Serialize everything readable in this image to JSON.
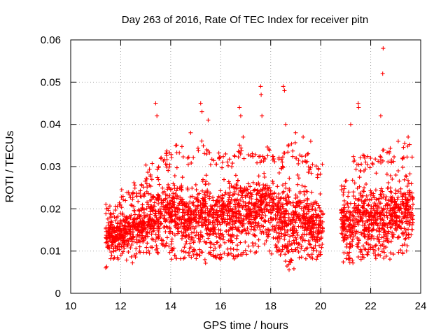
{
  "chart_data": {
    "type": "scatter",
    "title": "Day 263 of 2016, Rate Of TEC Index for receiver pitn",
    "xlabel": "GPS time / hours",
    "ylabel": "ROTI / TECUs",
    "xlim": [
      10,
      24
    ],
    "ylim": [
      0,
      0.06
    ],
    "xticks": [
      "10",
      "12",
      "14",
      "16",
      "18",
      "20",
      "22",
      "24"
    ],
    "yticks": [
      "0",
      "0.01",
      "0.02",
      "0.03",
      "0.04",
      "0.05",
      "0.06"
    ],
    "grid": true,
    "marker": "+",
    "marker_color": "#ff0000",
    "series": [
      {
        "name": "ROTI",
        "description": "dense ROTI samples approximated as 30-minute segments (hours, lower / central / upper ROTI) plus notable outliers",
        "segments": [
          {
            "x": [
              11.4,
              12.0
            ],
            "low": 0.006,
            "mid": 0.014,
            "high": 0.019
          },
          {
            "x": [
              12.0,
              12.5
            ],
            "low": 0.007,
            "mid": 0.015,
            "high": 0.022
          },
          {
            "x": [
              12.5,
              13.0
            ],
            "low": 0.008,
            "mid": 0.016,
            "high": 0.024
          },
          {
            "x": [
              13.0,
              13.5
            ],
            "low": 0.008,
            "mid": 0.018,
            "high": 0.028
          },
          {
            "x": [
              13.5,
              14.0
            ],
            "low": 0.009,
            "mid": 0.019,
            "high": 0.031
          },
          {
            "x": [
              14.0,
              14.5
            ],
            "low": 0.008,
            "mid": 0.019,
            "high": 0.033
          },
          {
            "x": [
              14.5,
              15.0
            ],
            "low": 0.008,
            "mid": 0.018,
            "high": 0.03
          },
          {
            "x": [
              15.0,
              15.5
            ],
            "low": 0.007,
            "mid": 0.019,
            "high": 0.034
          },
          {
            "x": [
              15.5,
              16.0
            ],
            "low": 0.008,
            "mid": 0.018,
            "high": 0.031
          },
          {
            "x": [
              16.0,
              16.5
            ],
            "low": 0.008,
            "mid": 0.019,
            "high": 0.03
          },
          {
            "x": [
              16.5,
              17.0
            ],
            "low": 0.008,
            "mid": 0.02,
            "high": 0.033
          },
          {
            "x": [
              17.0,
              17.5
            ],
            "low": 0.009,
            "mid": 0.019,
            "high": 0.031
          },
          {
            "x": [
              17.5,
              18.0
            ],
            "low": 0.01,
            "mid": 0.021,
            "high": 0.032
          },
          {
            "x": [
              18.0,
              18.5
            ],
            "low": 0.009,
            "mid": 0.019,
            "high": 0.03
          },
          {
            "x": [
              18.5,
              19.0
            ],
            "low": 0.005,
            "mid": 0.017,
            "high": 0.033
          },
          {
            "x": [
              19.0,
              19.5
            ],
            "low": 0.008,
            "mid": 0.018,
            "high": 0.031
          },
          {
            "x": [
              19.5,
              20.1
            ],
            "low": 0.008,
            "mid": 0.016,
            "high": 0.028
          },
          {
            "x": [
              20.8,
              21.3
            ],
            "low": 0.007,
            "mid": 0.016,
            "high": 0.024
          },
          {
            "x": [
              21.3,
              21.8
            ],
            "low": 0.008,
            "mid": 0.018,
            "high": 0.03
          },
          {
            "x": [
              21.8,
              22.3
            ],
            "low": 0.008,
            "mid": 0.018,
            "high": 0.03
          },
          {
            "x": [
              22.3,
              22.8
            ],
            "low": 0.008,
            "mid": 0.018,
            "high": 0.032
          },
          {
            "x": [
              22.8,
              23.3
            ],
            "low": 0.009,
            "mid": 0.019,
            "high": 0.03
          },
          {
            "x": [
              23.3,
              23.7
            ],
            "low": 0.01,
            "mid": 0.02,
            "high": 0.033
          }
        ],
        "outliers": [
          [
            13.4,
            0.045
          ],
          [
            13.45,
            0.042
          ],
          [
            14.2,
            0.035
          ],
          [
            14.8,
            0.038
          ],
          [
            15.2,
            0.045
          ],
          [
            15.25,
            0.043
          ],
          [
            15.5,
            0.041
          ],
          [
            16.2,
            0.033
          ],
          [
            16.75,
            0.044
          ],
          [
            16.8,
            0.042
          ],
          [
            16.9,
            0.037
          ],
          [
            17.6,
            0.049
          ],
          [
            17.62,
            0.047
          ],
          [
            17.65,
            0.042
          ],
          [
            18.5,
            0.049
          ],
          [
            18.55,
            0.048
          ],
          [
            18.6,
            0.04
          ],
          [
            19.0,
            0.038
          ],
          [
            19.3,
            0.037
          ],
          [
            19.6,
            0.036
          ],
          [
            21.2,
            0.04
          ],
          [
            21.5,
            0.045
          ],
          [
            21.52,
            0.044
          ],
          [
            22.5,
            0.058
          ],
          [
            22.48,
            0.052
          ],
          [
            22.4,
            0.042
          ],
          [
            23.1,
            0.036
          ],
          [
            23.5,
            0.037
          ]
        ]
      }
    ]
  }
}
